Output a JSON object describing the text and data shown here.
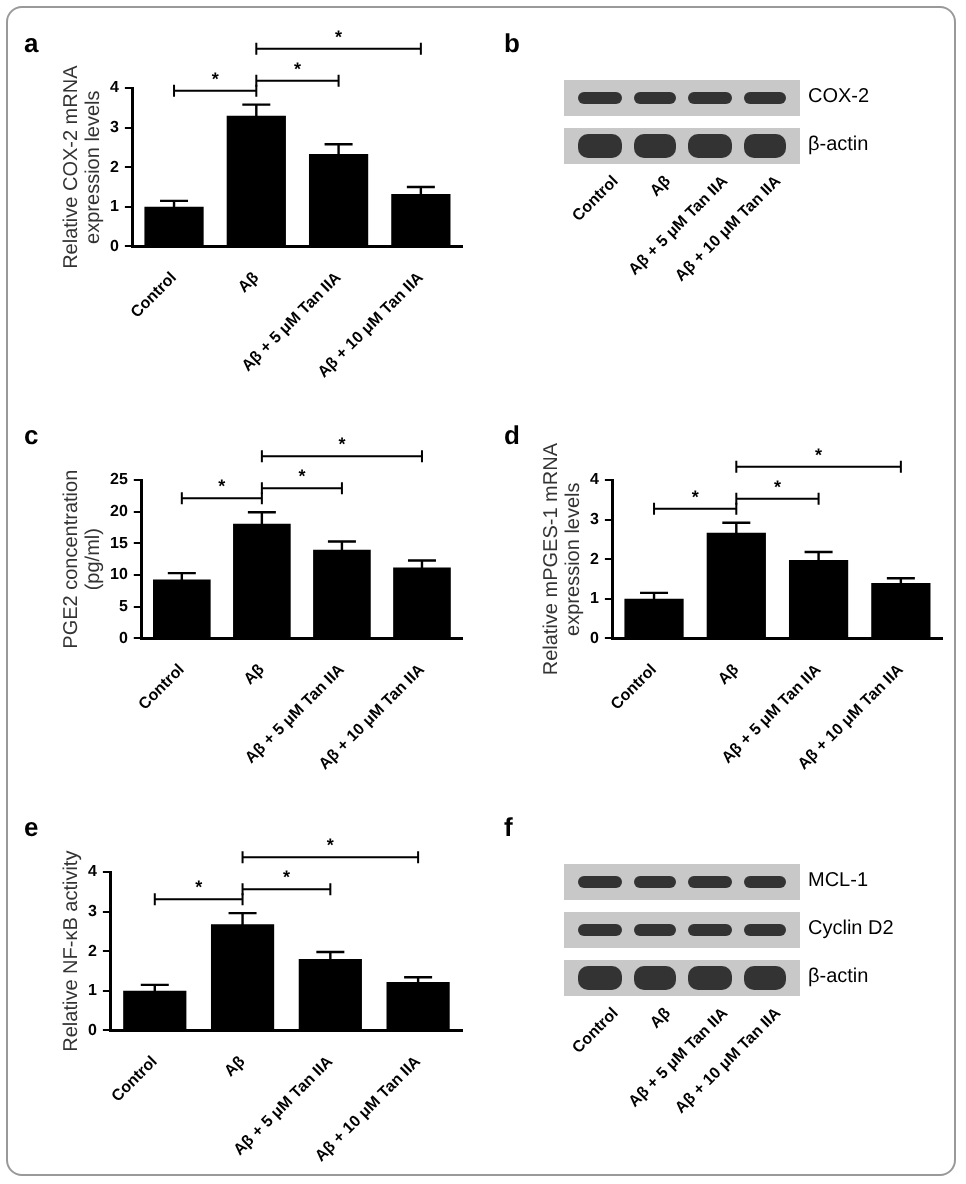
{
  "chart_data": [
    {
      "type": "bar",
      "title": "a",
      "ylabel": "Relative COX-2 mRNA expression levels",
      "categories": [
        "Control",
        "Aβ",
        "Aβ + 5 μM Tan IIA",
        "Aβ + 10 μM Tan IIA"
      ],
      "values": [
        1.0,
        3.3,
        2.33,
        1.32
      ],
      "errors": [
        0.15,
        0.28,
        0.25,
        0.18
      ],
      "color": "#000000",
      "ylim": [
        0,
        4
      ],
      "yticks": [
        0,
        1,
        2,
        3,
        4
      ],
      "annotations": [
        "*",
        "*",
        "*"
      ]
    },
    {
      "type": "other",
      "title": "b",
      "categories": [
        "Control",
        "Aβ",
        "Aβ + 5 μM Tan IIA",
        "Aβ + 10 μM Tan IIA"
      ],
      "annotations": [
        "COX-2",
        "β-actin"
      ]
    },
    {
      "type": "bar",
      "title": "c",
      "ylabel": "PGE2 concentration (pg/ml)",
      "categories": [
        "Control",
        "Aβ",
        "Aβ + 5 μM Tan IIA",
        "Aβ + 10 μM Tan IIA"
      ],
      "values": [
        9.3,
        18.1,
        14.0,
        11.2
      ],
      "errors": [
        1.0,
        1.8,
        1.3,
        1.1
      ],
      "color": "#000000",
      "ylim": [
        0,
        25
      ],
      "yticks": [
        0,
        5,
        10,
        15,
        20,
        25
      ],
      "annotations": [
        "*",
        "*",
        "*"
      ]
    },
    {
      "type": "bar",
      "title": "d",
      "ylabel": "Relative mPGES-1 mRNA expression levels",
      "categories": [
        "Control",
        "Aβ",
        "Aβ + 5 μM Tan IIA",
        "Aβ + 10 μM Tan IIA"
      ],
      "values": [
        1.0,
        2.67,
        1.98,
        1.4
      ],
      "errors": [
        0.15,
        0.25,
        0.2,
        0.12
      ],
      "color": "#000000",
      "ylim": [
        0,
        4
      ],
      "yticks": [
        0,
        1,
        2,
        3,
        4
      ],
      "annotations": [
        "*",
        "*",
        "*"
      ]
    },
    {
      "type": "bar",
      "title": "e",
      "ylabel": "Relative NF-κB activity",
      "categories": [
        "Control",
        "Aβ",
        "Aβ + 5 μM Tan IIA",
        "Aβ + 10 μM Tan IIA"
      ],
      "values": [
        1.0,
        2.68,
        1.8,
        1.22
      ],
      "errors": [
        0.15,
        0.28,
        0.18,
        0.12
      ],
      "color": "#000000",
      "ylim": [
        0,
        4
      ],
      "yticks": [
        0,
        1,
        2,
        3,
        4
      ],
      "annotations": [
        "*",
        "*",
        "*"
      ]
    },
    {
      "type": "other",
      "title": "f",
      "categories": [
        "Control",
        "Aβ",
        "Aβ + 5 μM Tan IIA",
        "Aβ + 10 μM Tan IIA"
      ],
      "annotations": [
        "MCL-1",
        "Cyclin D2",
        "β-actin"
      ]
    }
  ]
}
